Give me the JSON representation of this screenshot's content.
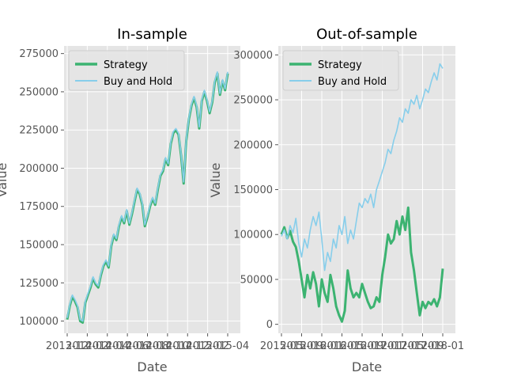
{
  "chart_data": [
    {
      "type": "line",
      "title": "In-sample",
      "xlabel": "Date",
      "ylabel": "Value",
      "ylim": [
        92000,
        280000
      ],
      "yticks": [
        100000,
        125000,
        150000,
        175000,
        200000,
        225000,
        250000,
        275000
      ],
      "ytick_labels": [
        "100000",
        "125000",
        "150000",
        "175000",
        "200000",
        "225000",
        "250000",
        "275000"
      ],
      "xtick_labels": [
        "2013-12",
        "2014-02",
        "2014-04",
        "2014-06",
        "2014-08",
        "2014-10",
        "2014-12",
        "2015-02",
        "2015-04"
      ],
      "grid": true,
      "legend": "upper-left",
      "series": [
        {
          "name": "Strategy",
          "color": "#3cb371",
          "values": [
            101000,
            110000,
            116000,
            113000,
            109000,
            100000,
            99000,
            112000,
            117000,
            122000,
            128000,
            124000,
            122000,
            130000,
            136000,
            139000,
            135000,
            149000,
            156000,
            153000,
            162000,
            168000,
            164000,
            172000,
            163000,
            170000,
            178000,
            186000,
            183000,
            176000,
            162000,
            168000,
            175000,
            180000,
            176000,
            186000,
            195000,
            198000,
            206000,
            202000,
            216000,
            223000,
            225000,
            222000,
            208000,
            190000,
            218000,
            232000,
            241000,
            246000,
            240000,
            226000,
            244000,
            250000,
            244000,
            236000,
            243000,
            256000,
            262000,
            248000,
            257000,
            251000,
            262000
          ]
        },
        {
          "name": "Buy and Hold",
          "color": "#87ceeb",
          "values": [
            102000,
            111000,
            117000,
            114000,
            110000,
            101000,
            100000,
            113000,
            118000,
            123000,
            129000,
            125000,
            123000,
            131000,
            137000,
            140000,
            136000,
            150000,
            157000,
            154000,
            163000,
            169000,
            165000,
            173000,
            164000,
            171000,
            179000,
            187000,
            184000,
            177000,
            163000,
            169000,
            176000,
            181000,
            177000,
            187000,
            196000,
            199000,
            207000,
            203000,
            217000,
            224000,
            226000,
            223000,
            209000,
            191000,
            219000,
            233000,
            242000,
            247000,
            241000,
            227000,
            245000,
            251000,
            245000,
            237000,
            244000,
            257000,
            263000,
            249000,
            258000,
            252000,
            263000
          ]
        }
      ]
    },
    {
      "type": "line",
      "title": "Out-of-sample",
      "xlabel": "Date",
      "ylabel": "Value",
      "ylim": [
        -10000,
        310000
      ],
      "yticks": [
        0,
        50000,
        100000,
        150000,
        200000,
        250000,
        300000
      ],
      "ytick_labels": [
        "0",
        "50000",
        "100000",
        "150000",
        "200000",
        "250000",
        "300000"
      ],
      "xtick_labels": [
        "2015-05",
        "2015-09",
        "2016-01",
        "2016-05",
        "2016-09",
        "2017-01",
        "2017-05",
        "2017-09",
        "2018-01"
      ],
      "grid": true,
      "legend": "upper-left",
      "series": [
        {
          "name": "Strategy",
          "color": "#3cb371",
          "values": [
            100000,
            108000,
            96000,
            104000,
            92000,
            86000,
            70000,
            50000,
            30000,
            55000,
            40000,
            58000,
            45000,
            20000,
            50000,
            35000,
            25000,
            55000,
            40000,
            20000,
            10000,
            3000,
            15000,
            60000,
            40000,
            30000,
            35000,
            30000,
            45000,
            35000,
            25000,
            18000,
            20000,
            30000,
            25000,
            55000,
            75000,
            100000,
            90000,
            95000,
            115000,
            100000,
            120000,
            105000,
            130000,
            80000,
            60000,
            35000,
            10000,
            25000,
            18000,
            25000,
            22000,
            28000,
            20000,
            30000,
            62000
          ]
        },
        {
          "name": "Buy and Hold",
          "color": "#87ceeb",
          "values": [
            98000,
            105000,
            95000,
            110000,
            102000,
            118000,
            90000,
            75000,
            95000,
            85000,
            105000,
            120000,
            110000,
            125000,
            95000,
            60000,
            80000,
            70000,
            95000,
            85000,
            110000,
            100000,
            120000,
            90000,
            105000,
            95000,
            115000,
            135000,
            130000,
            140000,
            135000,
            145000,
            130000,
            150000,
            160000,
            170000,
            180000,
            195000,
            190000,
            205000,
            215000,
            230000,
            225000,
            240000,
            235000,
            250000,
            245000,
            255000,
            240000,
            250000,
            262000,
            258000,
            270000,
            280000,
            272000,
            290000,
            285000
          ]
        }
      ]
    }
  ]
}
